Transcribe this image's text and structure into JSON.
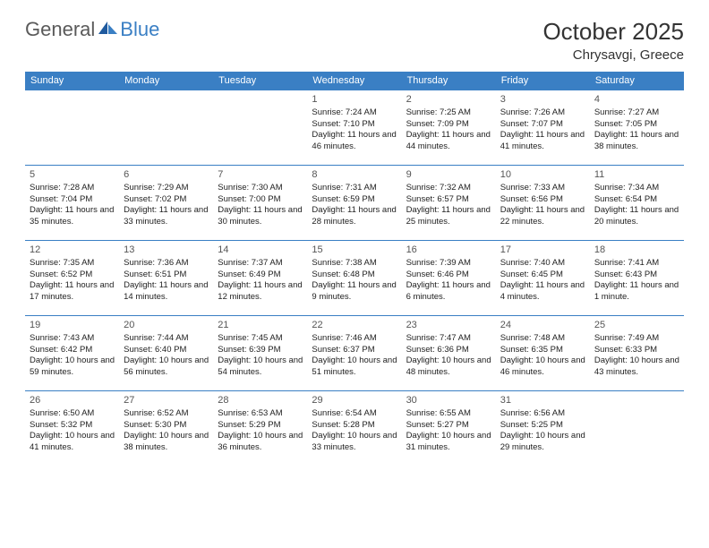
{
  "brand": {
    "word1": "General",
    "word2": "Blue"
  },
  "title": "October 2025",
  "location": "Chrysavgi, Greece",
  "colors": {
    "header_bg": "#3a7fc4",
    "header_text": "#ffffff",
    "row_border": "#3a7fc4",
    "text": "#222222",
    "logo_gray": "#5a5a5a",
    "logo_blue": "#3a7fc4",
    "background": "#ffffff"
  },
  "day_headers": [
    "Sunday",
    "Monday",
    "Tuesday",
    "Wednesday",
    "Thursday",
    "Friday",
    "Saturday"
  ],
  "weeks": [
    [
      {
        "n": "",
        "sunrise": "",
        "sunset": "",
        "daylight": ""
      },
      {
        "n": "",
        "sunrise": "",
        "sunset": "",
        "daylight": ""
      },
      {
        "n": "",
        "sunrise": "",
        "sunset": "",
        "daylight": ""
      },
      {
        "n": "1",
        "sunrise": "Sunrise: 7:24 AM",
        "sunset": "Sunset: 7:10 PM",
        "daylight": "Daylight: 11 hours and 46 minutes."
      },
      {
        "n": "2",
        "sunrise": "Sunrise: 7:25 AM",
        "sunset": "Sunset: 7:09 PM",
        "daylight": "Daylight: 11 hours and 44 minutes."
      },
      {
        "n": "3",
        "sunrise": "Sunrise: 7:26 AM",
        "sunset": "Sunset: 7:07 PM",
        "daylight": "Daylight: 11 hours and 41 minutes."
      },
      {
        "n": "4",
        "sunrise": "Sunrise: 7:27 AM",
        "sunset": "Sunset: 7:05 PM",
        "daylight": "Daylight: 11 hours and 38 minutes."
      }
    ],
    [
      {
        "n": "5",
        "sunrise": "Sunrise: 7:28 AM",
        "sunset": "Sunset: 7:04 PM",
        "daylight": "Daylight: 11 hours and 35 minutes."
      },
      {
        "n": "6",
        "sunrise": "Sunrise: 7:29 AM",
        "sunset": "Sunset: 7:02 PM",
        "daylight": "Daylight: 11 hours and 33 minutes."
      },
      {
        "n": "7",
        "sunrise": "Sunrise: 7:30 AM",
        "sunset": "Sunset: 7:00 PM",
        "daylight": "Daylight: 11 hours and 30 minutes."
      },
      {
        "n": "8",
        "sunrise": "Sunrise: 7:31 AM",
        "sunset": "Sunset: 6:59 PM",
        "daylight": "Daylight: 11 hours and 28 minutes."
      },
      {
        "n": "9",
        "sunrise": "Sunrise: 7:32 AM",
        "sunset": "Sunset: 6:57 PM",
        "daylight": "Daylight: 11 hours and 25 minutes."
      },
      {
        "n": "10",
        "sunrise": "Sunrise: 7:33 AM",
        "sunset": "Sunset: 6:56 PM",
        "daylight": "Daylight: 11 hours and 22 minutes."
      },
      {
        "n": "11",
        "sunrise": "Sunrise: 7:34 AM",
        "sunset": "Sunset: 6:54 PM",
        "daylight": "Daylight: 11 hours and 20 minutes."
      }
    ],
    [
      {
        "n": "12",
        "sunrise": "Sunrise: 7:35 AM",
        "sunset": "Sunset: 6:52 PM",
        "daylight": "Daylight: 11 hours and 17 minutes."
      },
      {
        "n": "13",
        "sunrise": "Sunrise: 7:36 AM",
        "sunset": "Sunset: 6:51 PM",
        "daylight": "Daylight: 11 hours and 14 minutes."
      },
      {
        "n": "14",
        "sunrise": "Sunrise: 7:37 AM",
        "sunset": "Sunset: 6:49 PM",
        "daylight": "Daylight: 11 hours and 12 minutes."
      },
      {
        "n": "15",
        "sunrise": "Sunrise: 7:38 AM",
        "sunset": "Sunset: 6:48 PM",
        "daylight": "Daylight: 11 hours and 9 minutes."
      },
      {
        "n": "16",
        "sunrise": "Sunrise: 7:39 AM",
        "sunset": "Sunset: 6:46 PM",
        "daylight": "Daylight: 11 hours and 6 minutes."
      },
      {
        "n": "17",
        "sunrise": "Sunrise: 7:40 AM",
        "sunset": "Sunset: 6:45 PM",
        "daylight": "Daylight: 11 hours and 4 minutes."
      },
      {
        "n": "18",
        "sunrise": "Sunrise: 7:41 AM",
        "sunset": "Sunset: 6:43 PM",
        "daylight": "Daylight: 11 hours and 1 minute."
      }
    ],
    [
      {
        "n": "19",
        "sunrise": "Sunrise: 7:43 AM",
        "sunset": "Sunset: 6:42 PM",
        "daylight": "Daylight: 10 hours and 59 minutes."
      },
      {
        "n": "20",
        "sunrise": "Sunrise: 7:44 AM",
        "sunset": "Sunset: 6:40 PM",
        "daylight": "Daylight: 10 hours and 56 minutes."
      },
      {
        "n": "21",
        "sunrise": "Sunrise: 7:45 AM",
        "sunset": "Sunset: 6:39 PM",
        "daylight": "Daylight: 10 hours and 54 minutes."
      },
      {
        "n": "22",
        "sunrise": "Sunrise: 7:46 AM",
        "sunset": "Sunset: 6:37 PM",
        "daylight": "Daylight: 10 hours and 51 minutes."
      },
      {
        "n": "23",
        "sunrise": "Sunrise: 7:47 AM",
        "sunset": "Sunset: 6:36 PM",
        "daylight": "Daylight: 10 hours and 48 minutes."
      },
      {
        "n": "24",
        "sunrise": "Sunrise: 7:48 AM",
        "sunset": "Sunset: 6:35 PM",
        "daylight": "Daylight: 10 hours and 46 minutes."
      },
      {
        "n": "25",
        "sunrise": "Sunrise: 7:49 AM",
        "sunset": "Sunset: 6:33 PM",
        "daylight": "Daylight: 10 hours and 43 minutes."
      }
    ],
    [
      {
        "n": "26",
        "sunrise": "Sunrise: 6:50 AM",
        "sunset": "Sunset: 5:32 PM",
        "daylight": "Daylight: 10 hours and 41 minutes."
      },
      {
        "n": "27",
        "sunrise": "Sunrise: 6:52 AM",
        "sunset": "Sunset: 5:30 PM",
        "daylight": "Daylight: 10 hours and 38 minutes."
      },
      {
        "n": "28",
        "sunrise": "Sunrise: 6:53 AM",
        "sunset": "Sunset: 5:29 PM",
        "daylight": "Daylight: 10 hours and 36 minutes."
      },
      {
        "n": "29",
        "sunrise": "Sunrise: 6:54 AM",
        "sunset": "Sunset: 5:28 PM",
        "daylight": "Daylight: 10 hours and 33 minutes."
      },
      {
        "n": "30",
        "sunrise": "Sunrise: 6:55 AM",
        "sunset": "Sunset: 5:27 PM",
        "daylight": "Daylight: 10 hours and 31 minutes."
      },
      {
        "n": "31",
        "sunrise": "Sunrise: 6:56 AM",
        "sunset": "Sunset: 5:25 PM",
        "daylight": "Daylight: 10 hours and 29 minutes."
      },
      {
        "n": "",
        "sunrise": "",
        "sunset": "",
        "daylight": ""
      }
    ]
  ]
}
